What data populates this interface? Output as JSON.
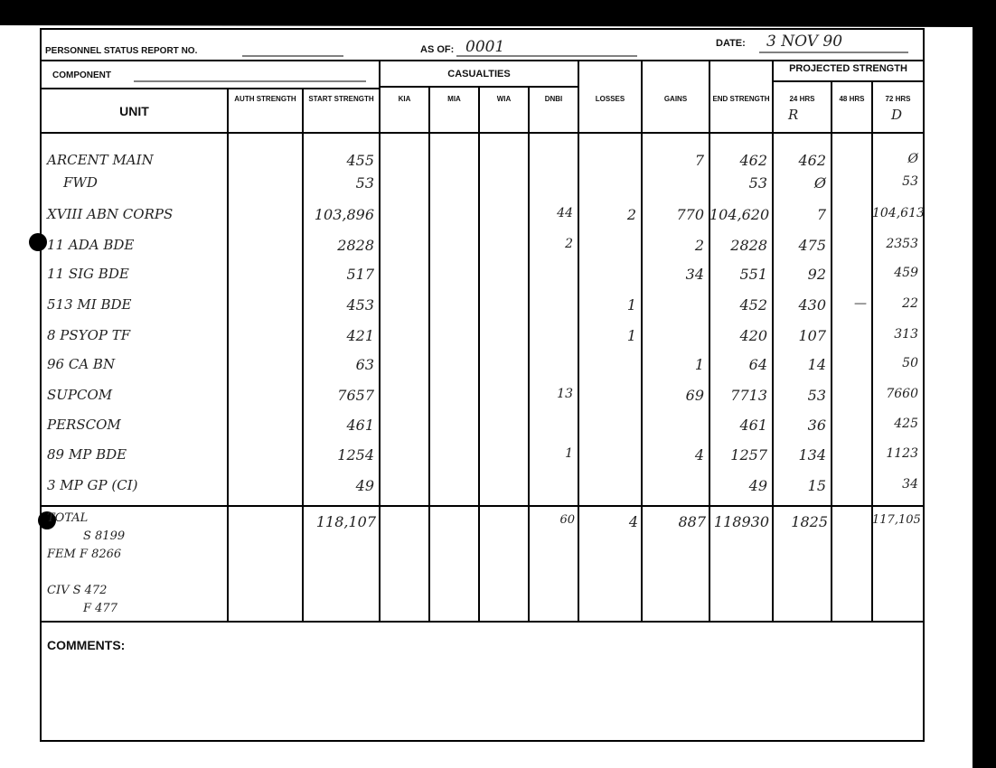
{
  "header": {
    "report_no_label": "PERSONNEL STATUS REPORT NO.",
    "as_of_label": "AS OF:",
    "as_of": "0001",
    "date_label": "DATE:",
    "date": "3 NOV 90",
    "component_label": "COMPONENT"
  },
  "table": {
    "groups": {
      "casualties": "CASUALTIES",
      "projected": "PROJECTED STRENGTH"
    },
    "columns": [
      "UNIT",
      "AUTH STRENGTH",
      "START STRENGTH",
      "KIA",
      "MIA",
      "WIA",
      "DNBI",
      "LOSSES",
      "GAINS",
      "END STRENGTH",
      "24 HRS",
      "48 HRS",
      "72 HRS"
    ],
    "column_notes": {
      "h24": "R",
      "h72": "D"
    },
    "rows": [
      [
        "ARCENT MAIN",
        null,
        "455",
        null,
        null,
        null,
        null,
        null,
        "7",
        "462",
        "462",
        null,
        "Ø"
      ],
      [
        "FWD",
        null,
        "53",
        null,
        null,
        null,
        null,
        null,
        null,
        "53",
        "Ø",
        null,
        "53"
      ],
      [
        "XVIII ABN CORPS",
        null,
        "103,896",
        null,
        null,
        null,
        "44",
        "2",
        "770",
        "104,620",
        "7",
        null,
        "104,613"
      ],
      [
        "11 ADA BDE",
        null,
        "2828",
        null,
        null,
        null,
        "2",
        null,
        "2",
        "2828",
        "475",
        null,
        "2353"
      ],
      [
        "11 SIG BDE",
        null,
        "517",
        null,
        null,
        null,
        null,
        null,
        "34",
        "551",
        "92",
        null,
        "459"
      ],
      [
        "513 MI BDE",
        null,
        "453",
        null,
        null,
        null,
        null,
        "1",
        null,
        "452",
        "430",
        "—",
        "22"
      ],
      [
        "8 PSYOP TF",
        null,
        "421",
        null,
        null,
        null,
        null,
        "1",
        null,
        "420",
        "107",
        null,
        "313"
      ],
      [
        "96 CA BN",
        null,
        "63",
        null,
        null,
        null,
        null,
        null,
        "1",
        "64",
        "14",
        null,
        "50"
      ],
      [
        "SUPCOM",
        null,
        "7657",
        null,
        null,
        null,
        "13",
        null,
        "69",
        "7713",
        "53",
        null,
        "7660"
      ],
      [
        "PERSCOM",
        null,
        "461",
        null,
        null,
        null,
        null,
        null,
        null,
        "461",
        "36",
        null,
        "425"
      ],
      [
        "89 MP BDE",
        null,
        "1254",
        null,
        null,
        null,
        "1",
        null,
        "4",
        "1257",
        "134",
        null,
        "1123"
      ],
      [
        "3 MP GP (CI)",
        null,
        "49",
        null,
        null,
        null,
        null,
        null,
        null,
        "49",
        "15",
        null,
        "34"
      ]
    ],
    "total": {
      "unit_lines": [
        "TOTAL",
        "S 8199",
        "FEM F 8266",
        "CIV S 472",
        "F 477"
      ],
      "values": [
        null,
        "118,107",
        null,
        null,
        null,
        "60",
        "4",
        "887",
        "118930",
        "1825",
        null,
        "117,105"
      ]
    }
  },
  "comments_label": "COMMENTS:"
}
